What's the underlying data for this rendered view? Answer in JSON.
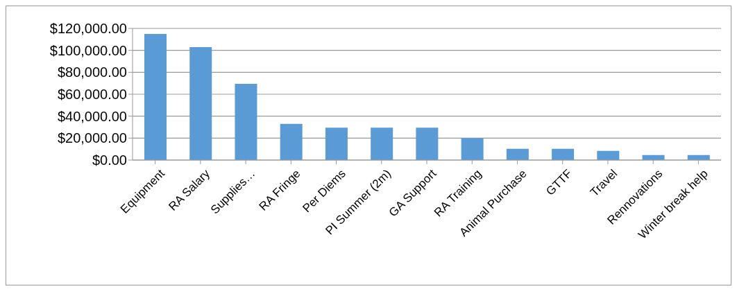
{
  "chart_data": {
    "type": "bar",
    "categories": [
      "Equipment",
      "RA Salary",
      "Supplies…",
      "RA Fringe",
      "Per Diems",
      "PI Summer (2m)",
      "GA Support",
      "RA Training",
      "Animal Purchase",
      "GTTF",
      "Travel",
      "Rennovations",
      "Winter break help"
    ],
    "values": [
      115000,
      103000,
      69500,
      33000,
      29500,
      29600,
      29600,
      20000,
      10200,
      10200,
      8300,
      4600,
      4600
    ],
    "color": "#5b9bd5",
    "ylim": [
      0,
      120000
    ],
    "yticks": [
      {
        "value": 0,
        "label": "$0.00"
      },
      {
        "value": 20000,
        "label": "$20,000.00"
      },
      {
        "value": 40000,
        "label": "$40,000.00"
      },
      {
        "value": 60000,
        "label": "$60,000.00"
      },
      {
        "value": 80000,
        "label": "$80,000.00"
      },
      {
        "value": 100000,
        "label": "$100,000.00"
      },
      {
        "value": 120000,
        "label": "$120,000.00"
      }
    ],
    "grid": "y",
    "legend": false
  }
}
